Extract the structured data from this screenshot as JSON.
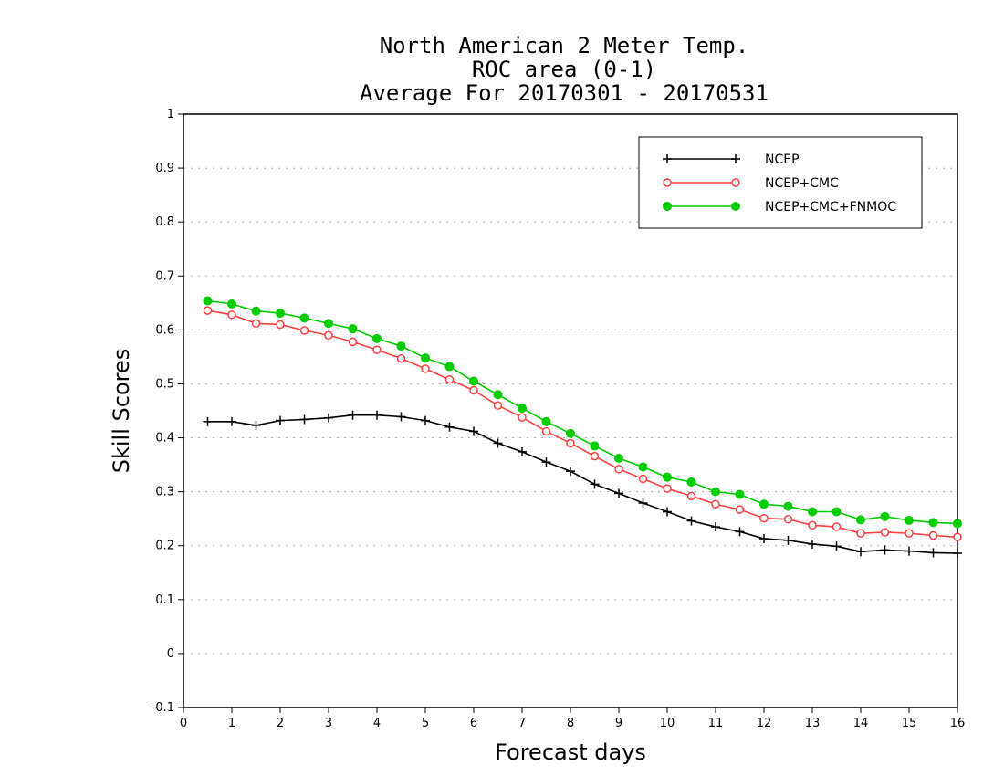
{
  "chart_data": {
    "type": "line",
    "title": [
      "North American 2 Meter Temp.",
      "ROC area (0-1)",
      "Average For 20170301 - 20170531"
    ],
    "xlabel": "Forecast days",
    "ylabel": "Skill Scores",
    "xlim": [
      0,
      16
    ],
    "ylim": [
      -0.1,
      1
    ],
    "xticks": [
      "0",
      "1",
      "2",
      "3",
      "4",
      "5",
      "6",
      "7",
      "8",
      "9",
      "10",
      "11",
      "12",
      "13",
      "14",
      "15",
      "16"
    ],
    "yticks": [
      "-0.1",
      "0",
      "0.1",
      "0.2",
      "0.3",
      "0.4",
      "0.5",
      "0.6",
      "0.7",
      "0.8",
      "0.9",
      "1"
    ],
    "grid": "horizontal dotted",
    "legend_position": "top-right",
    "x": [
      0.5,
      1,
      1.5,
      2,
      2.5,
      3,
      3.5,
      4,
      4.5,
      5,
      5.5,
      6,
      6.5,
      7,
      7.5,
      8,
      8.5,
      9,
      9.5,
      10,
      10.5,
      11,
      11.5,
      12,
      12.5,
      13,
      13.5,
      14,
      14.5,
      15,
      15.5,
      16
    ],
    "series": [
      {
        "name": "NCEP",
        "color": "#000000",
        "marker": "plus",
        "values": [
          0.43,
          0.43,
          0.423,
          0.432,
          0.434,
          0.437,
          0.442,
          0.442,
          0.439,
          0.432,
          0.42,
          0.412,
          0.39,
          0.374,
          0.355,
          0.338,
          0.314,
          0.297,
          0.279,
          0.263,
          0.246,
          0.235,
          0.226,
          0.213,
          0.21,
          0.203,
          0.199,
          0.189,
          0.192,
          0.19,
          0.187,
          0.186
        ]
      },
      {
        "name": "NCEP+CMC",
        "color": "#ff4040",
        "marker": "open-circle",
        "values": [
          0.636,
          0.628,
          0.612,
          0.61,
          0.599,
          0.59,
          0.578,
          0.563,
          0.547,
          0.528,
          0.508,
          0.488,
          0.46,
          0.438,
          0.412,
          0.39,
          0.366,
          0.342,
          0.324,
          0.306,
          0.292,
          0.277,
          0.267,
          0.251,
          0.249,
          0.238,
          0.235,
          0.223,
          0.225,
          0.223,
          0.219,
          0.216
        ]
      },
      {
        "name": "NCEP+CMC+FNMOC",
        "color": "#00cc00",
        "marker": "filled-circle",
        "values": [
          0.654,
          0.648,
          0.635,
          0.631,
          0.622,
          0.612,
          0.602,
          0.584,
          0.57,
          0.548,
          0.532,
          0.505,
          0.48,
          0.455,
          0.43,
          0.408,
          0.385,
          0.362,
          0.346,
          0.327,
          0.318,
          0.3,
          0.295,
          0.277,
          0.273,
          0.263,
          0.263,
          0.248,
          0.254,
          0.247,
          0.243,
          0.241
        ]
      }
    ]
  }
}
